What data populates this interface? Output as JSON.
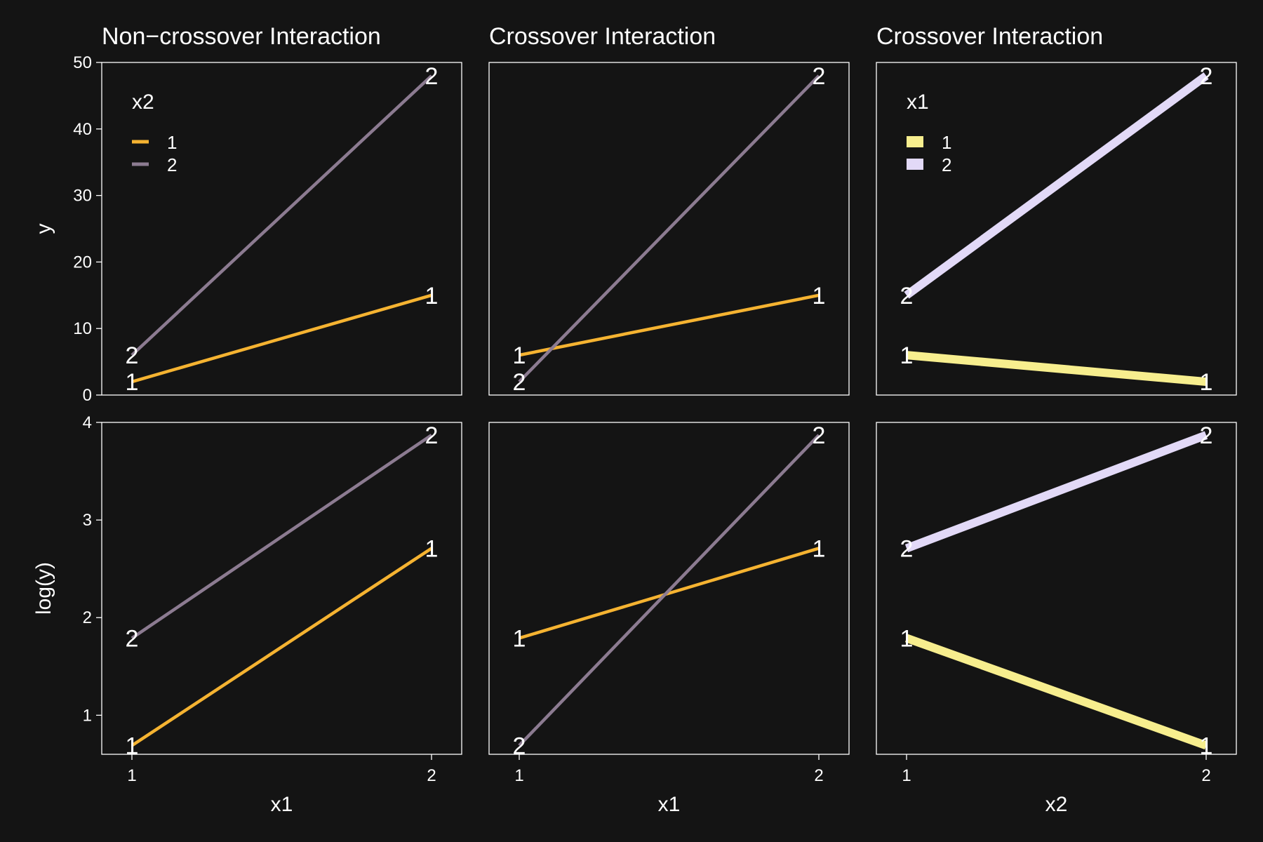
{
  "chart_data": [
    {
      "type": "line",
      "title": "Non−crossover Interaction",
      "xlabel": "x1",
      "ylabel": "y",
      "x_categories": [
        "1",
        "2"
      ],
      "ylim": [
        0,
        50
      ],
      "yticks": [
        0,
        10,
        20,
        30,
        40,
        50
      ],
      "legend": {
        "title": "x2",
        "placement": "top-left",
        "entries": [
          "1",
          "2"
        ]
      },
      "series": [
        {
          "name": "1",
          "color": "#F5B331",
          "values": [
            2,
            15
          ]
        },
        {
          "name": "2",
          "color": "#8C7B91",
          "values": [
            6,
            48
          ]
        }
      ]
    },
    {
      "type": "line",
      "title": "Crossover Interaction",
      "xlabel": "x1",
      "ylabel": "",
      "x_categories": [
        "1",
        "2"
      ],
      "ylim": [
        0,
        50
      ],
      "series": [
        {
          "name": "1",
          "color": "#F5B331",
          "values": [
            6,
            15
          ]
        },
        {
          "name": "2",
          "color": "#8C7B91",
          "values": [
            2,
            48
          ]
        }
      ]
    },
    {
      "type": "line",
      "title": "Crossover Interaction",
      "xlabel": "x2",
      "ylabel": "",
      "x_categories": [
        "1",
        "2"
      ],
      "ylim": [
        0,
        50
      ],
      "legend": {
        "title": "x1",
        "placement": "top-left",
        "entries": [
          "1",
          "2"
        ]
      },
      "series": [
        {
          "name": "1",
          "color": "#F7EE8E",
          "values": [
            6,
            2
          ]
        },
        {
          "name": "2",
          "color": "#E2D9F7",
          "values": [
            15,
            48
          ]
        }
      ]
    },
    {
      "type": "line",
      "title": "",
      "xlabel": "x1",
      "ylabel": "log(y)",
      "x_categories": [
        "1",
        "2"
      ],
      "ylim": [
        0.6,
        4.0
      ],
      "yticks": [
        1,
        2,
        3,
        4
      ],
      "series": [
        {
          "name": "1",
          "color": "#F5B331",
          "values": [
            0.69,
            2.71
          ]
        },
        {
          "name": "2",
          "color": "#8C7B91",
          "values": [
            1.79,
            3.87
          ]
        }
      ]
    },
    {
      "type": "line",
      "title": "",
      "xlabel": "x1",
      "ylabel": "",
      "x_categories": [
        "1",
        "2"
      ],
      "ylim": [
        0.6,
        4.0
      ],
      "series": [
        {
          "name": "1",
          "color": "#F5B331",
          "values": [
            1.79,
            2.71
          ]
        },
        {
          "name": "2",
          "color": "#8C7B91",
          "values": [
            0.69,
            3.87
          ]
        }
      ]
    },
    {
      "type": "line",
      "title": "",
      "xlabel": "x2",
      "ylabel": "",
      "x_categories": [
        "1",
        "2"
      ],
      "ylim": [
        0.6,
        4.0
      ],
      "series": [
        {
          "name": "1",
          "color": "#F7EE8E",
          "values": [
            1.79,
            0.69
          ]
        },
        {
          "name": "2",
          "color": "#E2D9F7",
          "values": [
            2.71,
            3.87
          ]
        }
      ]
    }
  ]
}
